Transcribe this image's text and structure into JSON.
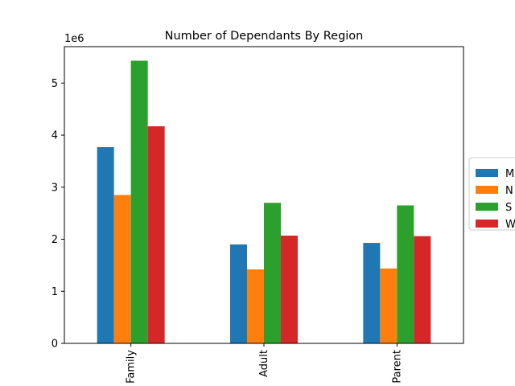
{
  "chart_data": {
    "type": "bar",
    "title": "Number of Dependants By Region",
    "xlabel": "",
    "ylabel": "",
    "offset_label": "1e6",
    "categories": [
      "Family",
      "Adult",
      "Parent"
    ],
    "yticks": [
      0,
      1,
      2,
      3,
      4,
      5
    ],
    "ylim": [
      0,
      5.7
    ],
    "grid": false,
    "legend_position": "right",
    "series": [
      {
        "name": "M",
        "color": "#1f77b4",
        "values": [
          3.77,
          1.9,
          1.93
        ]
      },
      {
        "name": "N",
        "color": "#ff7f0e",
        "values": [
          2.85,
          1.42,
          1.44
        ]
      },
      {
        "name": "S",
        "color": "#2ca02c",
        "values": [
          5.43,
          2.7,
          2.65
        ]
      },
      {
        "name": "W",
        "color": "#d62728",
        "values": [
          4.17,
          2.07,
          2.06
        ]
      }
    ]
  }
}
